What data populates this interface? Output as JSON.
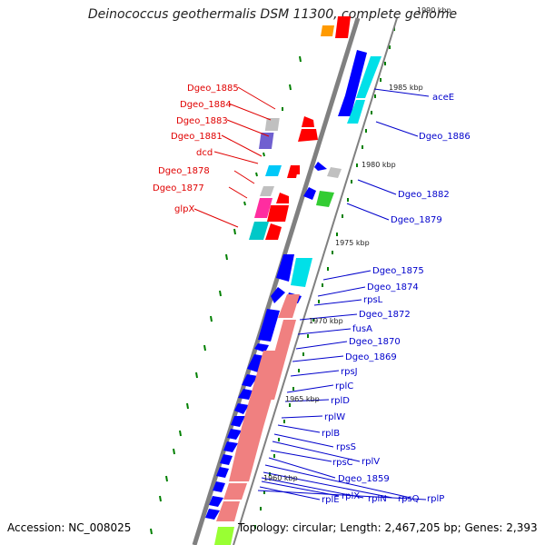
{
  "title": "Deinococcus geothermalis DSM 11300, complete genome",
  "accession": "Accession: NC_008025",
  "topology": "Topology: circular; Length: 2,467,205 bp; Genes: 2,393",
  "ticks": [
    "1990 kbp",
    "1985 kbp",
    "1980 kbp",
    "1975 kbp",
    "1970 kbp",
    "1965 kbp",
    "1960 kbp"
  ],
  "left_labels": [
    "Dgeo_1885",
    "Dgeo_1884",
    "Dgeo_1883",
    "Dgeo_1881",
    "dcd",
    "Dgeo_1878",
    "Dgeo_1877",
    "glpX"
  ],
  "right_labels": [
    "aceE",
    "Dgeo_1886",
    "Dgeo_1882",
    "Dgeo_1879",
    "Dgeo_1875",
    "Dgeo_1874",
    "rpsL",
    "Dgeo_1872",
    "fusA",
    "Dgeo_1870",
    "Dgeo_1869",
    "rpsJ",
    "rplC",
    "rplD",
    "rplW",
    "rplB",
    "rpsS",
    "rplV",
    "rpsC",
    "Dgeo_1859",
    "rplE",
    "rplX",
    "rplN",
    "rpsQ",
    "rplP"
  ],
  "colors": {
    "left_label": "#e00000",
    "right_label": "#0000cc",
    "forward_gene": "#ff0000",
    "reverse_gene": "#0000ff",
    "cyan_gene": "#00d0d8",
    "rrna": "#f08080",
    "backbone": "#808080",
    "gc_marks": "#008000"
  }
}
